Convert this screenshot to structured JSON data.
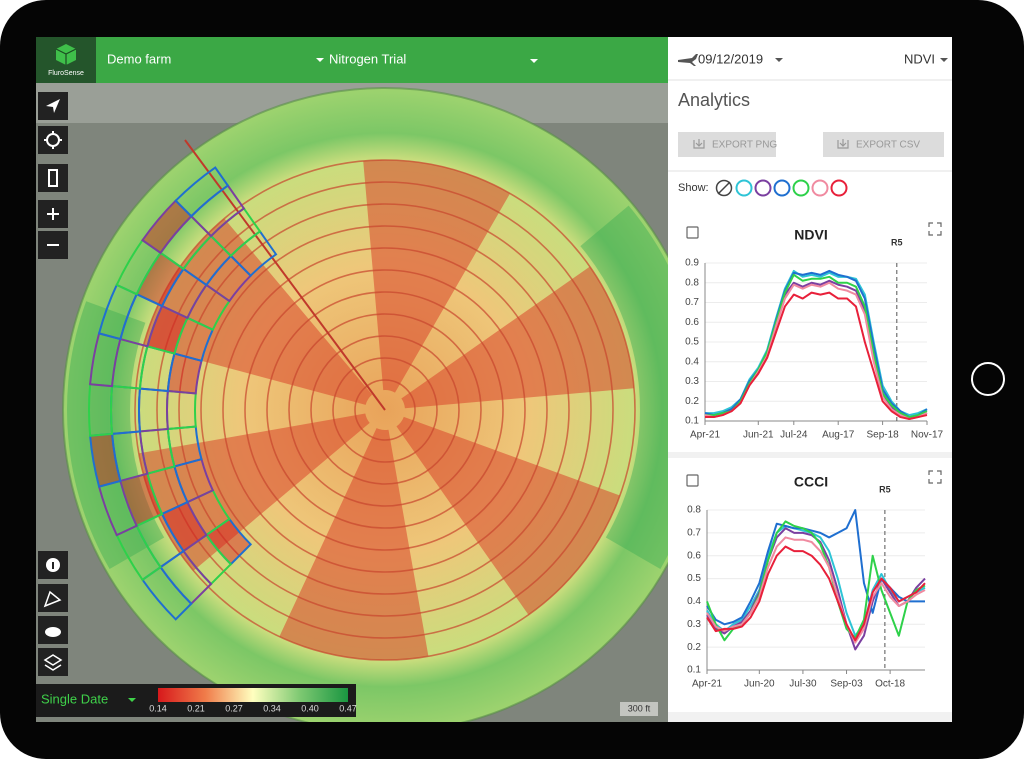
{
  "header": {
    "logo": "FluroSense",
    "farm": "Demo farm",
    "trial": "Nitrogen Trial"
  },
  "map": {
    "mode": "Single Date",
    "colorbar": [
      "0.14",
      "0.21",
      "0.27",
      "0.34",
      "0.40",
      "0.47"
    ],
    "scale": "300 ft"
  },
  "panel": {
    "date": "09/12/2019",
    "layer": "NDVI",
    "title": "Analytics",
    "buttons": [
      "EXPORT PNG",
      "EXPORT CSV"
    ],
    "show_label": "Show:",
    "show_colors": [
      "#2ec4d6",
      "#7b3fa0",
      "#1f6fd0",
      "#2ed14a",
      "#f08aa0",
      "#e8203a"
    ],
    "charts": [
      {
        "type": "line",
        "title": "NDVI",
        "categories": [
          "Apr-21",
          null,
          null,
          null,
          null,
          null,
          "Jun-21",
          null,
          null,
          null,
          "Jul-24",
          null,
          null,
          null,
          null,
          "Aug-17",
          null,
          null,
          null,
          null,
          "Sep-18",
          null,
          null,
          null,
          null,
          "Nov-17"
        ],
        "ylim": [
          0.1,
          0.9
        ],
        "yticks": [
          0.1,
          0.2,
          0.3,
          0.4,
          0.5,
          0.6,
          0.7,
          0.8,
          0.9
        ],
        "grid": true,
        "annotations": [
          {
            "text": "R5",
            "x": 21.6
          }
        ],
        "series": [
          {
            "color": "#2ec4d6",
            "values": [
              0.14,
              0.14,
              0.15,
              0.17,
              0.21,
              0.31,
              0.37,
              0.46,
              0.62,
              0.77,
              0.86,
              0.83,
              0.84,
              0.83,
              0.85,
              0.83,
              0.83,
              0.82,
              0.74,
              0.5,
              0.28,
              0.2,
              0.15,
              0.13,
              0.14,
              0.16
            ]
          },
          {
            "color": "#7b3fa0",
            "values": [
              0.13,
              0.13,
              0.14,
              0.16,
              0.2,
              0.3,
              0.35,
              0.44,
              0.6,
              0.74,
              0.8,
              0.78,
              0.8,
              0.79,
              0.81,
              0.79,
              0.78,
              0.76,
              0.66,
              0.42,
              0.24,
              0.17,
              0.13,
              0.12,
              0.12,
              0.14
            ]
          },
          {
            "color": "#1f6fd0",
            "values": [
              0.14,
              0.13,
              0.14,
              0.16,
              0.21,
              0.3,
              0.36,
              0.45,
              0.61,
              0.76,
              0.85,
              0.84,
              0.85,
              0.84,
              0.86,
              0.84,
              0.83,
              0.81,
              0.72,
              0.48,
              0.26,
              0.19,
              0.15,
              0.12,
              0.13,
              0.16
            ]
          },
          {
            "color": "#2ed14a",
            "values": [
              0.13,
              0.13,
              0.14,
              0.15,
              0.2,
              0.29,
              0.36,
              0.45,
              0.6,
              0.75,
              0.84,
              0.81,
              0.82,
              0.82,
              0.83,
              0.8,
              0.8,
              0.78,
              0.68,
              0.44,
              0.24,
              0.18,
              0.14,
              0.12,
              0.13,
              0.15
            ]
          },
          {
            "color": "#f08aa0",
            "values": [
              0.13,
              0.12,
              0.13,
              0.15,
              0.19,
              0.28,
              0.35,
              0.43,
              0.58,
              0.72,
              0.79,
              0.77,
              0.79,
              0.78,
              0.8,
              0.77,
              0.76,
              0.74,
              0.64,
              0.4,
              0.22,
              0.16,
              0.13,
              0.11,
              0.12,
              0.14
            ]
          },
          {
            "color": "#e8203a",
            "values": [
              0.12,
              0.12,
              0.13,
              0.15,
              0.19,
              0.28,
              0.34,
              0.42,
              0.55,
              0.68,
              0.74,
              0.72,
              0.75,
              0.74,
              0.75,
              0.72,
              0.72,
              0.68,
              0.5,
              0.35,
              0.2,
              0.15,
              0.12,
              0.11,
              0.12,
              0.13
            ]
          }
        ]
      },
      {
        "type": "line",
        "title": "CCCI",
        "categories": [
          "Apr-21",
          null,
          null,
          null,
          null,
          null,
          "Jun-20",
          null,
          null,
          null,
          null,
          "Jul-30",
          null,
          null,
          null,
          null,
          "Sep-03",
          null,
          null,
          null,
          null,
          "Oct-18",
          null,
          null,
          null,
          null
        ],
        "ylim": [
          0.1,
          0.8
        ],
        "yticks": [
          0.1,
          0.2,
          0.3,
          0.4,
          0.5,
          0.6,
          0.7,
          0.8
        ],
        "grid": true,
        "annotations": [
          {
            "text": "R5",
            "x": 20.4
          }
        ],
        "series": [
          {
            "color": "#2ec4d6",
            "values": [
              0.36,
              0.3,
              0.27,
              0.3,
              0.32,
              0.38,
              0.45,
              0.6,
              0.7,
              0.73,
              0.72,
              0.71,
              0.7,
              0.68,
              0.62,
              0.5,
              0.35,
              0.25,
              0.3,
              0.45,
              0.52,
              0.45,
              0.4,
              0.42,
              0.44,
              0.46
            ]
          },
          {
            "color": "#7b3fa0",
            "values": [
              0.34,
              0.28,
              0.26,
              0.29,
              0.31,
              0.36,
              0.44,
              0.58,
              0.68,
              0.72,
              0.7,
              0.7,
              0.69,
              0.66,
              0.58,
              0.45,
              0.3,
              0.19,
              0.25,
              0.4,
              0.5,
              0.44,
              0.38,
              0.4,
              0.46,
              0.5
            ]
          },
          {
            "color": "#1f6fd0",
            "values": [
              0.38,
              0.32,
              0.3,
              0.31,
              0.33,
              0.4,
              0.48,
              0.62,
              0.74,
              0.73,
              0.72,
              0.72,
              0.71,
              0.7,
              0.68,
              0.7,
              0.72,
              0.8,
              0.48,
              0.35,
              0.5,
              0.46,
              0.42,
              0.4,
              0.4,
              0.4
            ]
          },
          {
            "color": "#2ed14a",
            "values": [
              0.4,
              0.3,
              0.23,
              0.28,
              0.3,
              0.35,
              0.43,
              0.58,
              0.7,
              0.75,
              0.73,
              0.72,
              0.7,
              0.65,
              0.55,
              0.4,
              0.28,
              0.24,
              0.32,
              0.6,
              0.45,
              0.35,
              0.25,
              0.4,
              0.45,
              0.47
            ]
          },
          {
            "color": "#f08aa0",
            "values": [
              0.35,
              0.29,
              0.27,
              0.29,
              0.3,
              0.35,
              0.42,
              0.55,
              0.64,
              0.68,
              0.67,
              0.67,
              0.66,
              0.62,
              0.55,
              0.42,
              0.3,
              0.22,
              0.28,
              0.42,
              0.48,
              0.42,
              0.38,
              0.4,
              0.43,
              0.45
            ]
          },
          {
            "color": "#e8203a",
            "values": [
              0.33,
              0.27,
              0.28,
              0.28,
              0.29,
              0.33,
              0.4,
              0.52,
              0.6,
              0.64,
              0.62,
              0.62,
              0.6,
              0.56,
              0.5,
              0.4,
              0.3,
              0.23,
              0.3,
              0.44,
              0.5,
              0.46,
              0.4,
              0.42,
              0.44,
              0.48
            ]
          }
        ]
      }
    ]
  }
}
